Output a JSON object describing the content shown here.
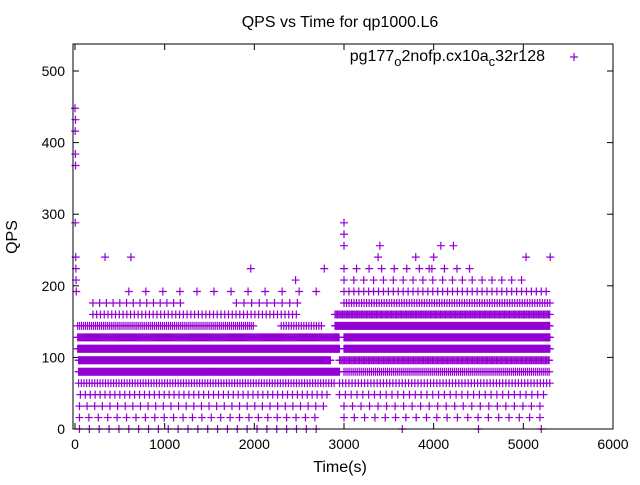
{
  "chart_data": {
    "type": "scatter",
    "title": "QPS vs Time for qp1000.L6",
    "xlabel": "Time(s)",
    "ylabel": "QPS",
    "xlim": [
      -20,
      6000
    ],
    "ylim": [
      0,
      540
    ],
    "xticks": [
      "0",
      "1000",
      "2000",
      "3000",
      "4000",
      "5000",
      "6000"
    ],
    "xtick_values": [
      0,
      1000,
      2000,
      3000,
      4000,
      5000,
      6000
    ],
    "yticks": [
      "0",
      "100",
      "200",
      "300",
      "400",
      "500"
    ],
    "ytick_values": [
      0,
      100,
      200,
      300,
      400,
      500
    ],
    "grid": false,
    "legend_position": "top-right",
    "series": [
      {
        "name": "pg177_o2nofp.cx10a_c32r128",
        "color": "#9400d3",
        "marker": "plus",
        "level_runs": [
          {
            "qps": 0,
            "runs": [
              [
                50,
                2700,
                110
              ],
              [
                3650,
                3650,
                1
              ],
              [
                4500,
                4500,
                1
              ],
              [
                5200,
                5200,
                1
              ]
            ]
          },
          {
            "qps": 16,
            "runs": [
              [
                50,
                2700,
                105
              ],
              [
                3000,
                5250,
                115
              ]
            ]
          },
          {
            "qps": 32,
            "runs": [
              [
                50,
                2800,
                85
              ],
              [
                3000,
                5250,
                95
              ]
            ]
          },
          {
            "qps": 48,
            "runs": [
              [
                60,
                2850,
                55
              ],
              [
                2950,
                5250,
                65
              ]
            ]
          },
          {
            "qps": 64,
            "runs": [
              [
                40,
                2900,
                30
              ],
              [
                2950,
                5300,
                35
              ]
            ]
          },
          {
            "qps": 80,
            "runs": [
              [
                40,
                2950,
                10
              ],
              [
                3000,
                5300,
                22
              ]
            ]
          },
          {
            "qps": 96,
            "runs": [
              [
                40,
                2850,
                9
              ],
              [
                2950,
                5300,
                14
              ]
            ]
          },
          {
            "qps": 112,
            "runs": [
              [
                30,
                2950,
                7
              ],
              [
                3000,
                5300,
                7
              ]
            ]
          },
          {
            "qps": 128,
            "runs": [
              [
                30,
                2950,
                11
              ],
              [
                3000,
                5300,
                7
              ]
            ]
          },
          {
            "qps": 144,
            "runs": [
              [
                30,
                2000,
                22
              ],
              [
                2300,
                2750,
                28
              ],
              [
                2900,
                5300,
                9
              ]
            ]
          },
          {
            "qps": 160,
            "runs": [
              [
                200,
                2500,
                42
              ],
              [
                2900,
                5300,
                14
              ]
            ]
          },
          {
            "qps": 176,
            "runs": [
              [
                200,
                1200,
                75
              ],
              [
                1800,
                2500,
                85
              ],
              [
                3000,
                5300,
                28
              ]
            ]
          },
          {
            "qps": 192,
            "runs": [
              [
                600,
                2700,
                190
              ],
              [
                3000,
                5300,
                55
              ]
            ]
          },
          {
            "qps": 208,
            "runs": [
              [
                3000,
                5000,
                110
              ]
            ]
          },
          {
            "qps": 224,
            "runs": [
              [
                3000,
                4500,
                140
              ]
            ]
          }
        ],
        "points": [
          [
            0,
            448
          ],
          [
            5,
            432
          ],
          [
            2,
            416
          ],
          [
            4,
            384
          ],
          [
            6,
            368
          ],
          [
            3,
            288
          ],
          [
            8,
            240
          ],
          [
            10,
            224
          ],
          [
            12,
            208
          ],
          [
            14,
            192
          ],
          [
            335,
            240
          ],
          [
            624,
            240
          ],
          [
            1960,
            224
          ],
          [
            2460,
            208
          ],
          [
            2780,
            224
          ],
          [
            3000,
            256
          ],
          [
            3000,
            272
          ],
          [
            3000,
            288
          ],
          [
            3400,
            256
          ],
          [
            3380,
            240
          ],
          [
            3800,
            240
          ],
          [
            3950,
            224
          ],
          [
            4000,
            240
          ],
          [
            4080,
            256
          ],
          [
            4220,
            256
          ],
          [
            5030,
            240
          ],
          [
            5300,
            240
          ]
        ]
      }
    ]
  }
}
